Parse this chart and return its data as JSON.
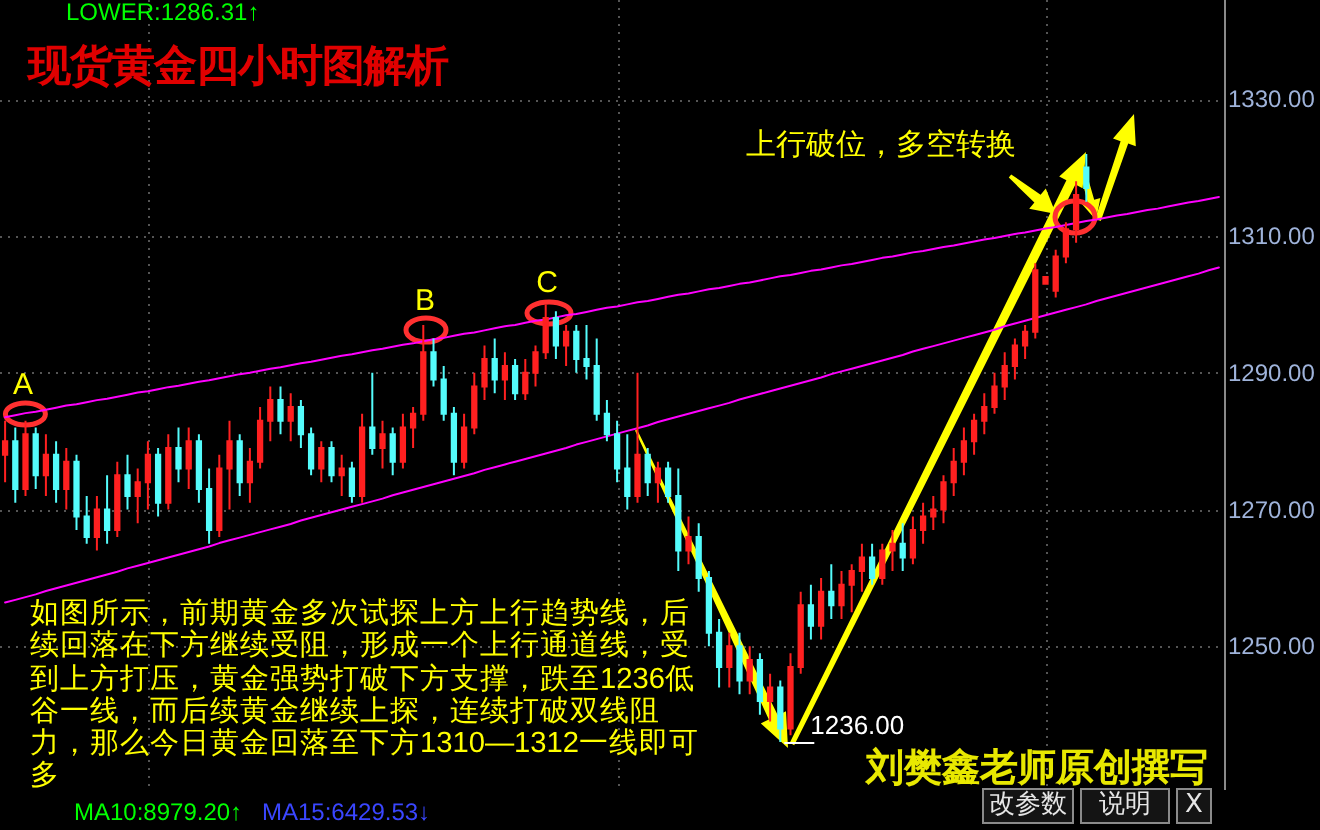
{
  "chart_data": {
    "type": "candlestick",
    "title": "现货黄金四小时图解析",
    "categories": [
      null,
      null,
      null,
      null,
      null,
      null,
      null,
      null,
      null,
      null,
      null,
      null,
      null,
      null,
      null,
      null,
      null,
      null,
      null,
      null,
      null,
      null,
      null,
      null,
      null,
      null,
      null,
      null,
      null,
      null,
      null,
      null,
      null,
      null,
      null,
      null,
      null,
      null,
      null,
      null,
      null,
      null,
      null,
      null,
      null,
      null,
      null,
      null,
      null,
      null,
      null,
      null,
      null,
      null,
      null,
      null,
      null,
      null,
      null,
      null,
      null,
      null,
      null,
      null,
      null,
      null,
      null,
      null,
      null,
      null,
      null,
      null,
      null,
      null,
      null,
      null,
      null,
      null,
      null,
      null,
      null,
      null,
      null,
      null,
      null,
      null,
      null,
      null,
      null,
      null,
      null,
      null,
      null,
      null,
      null,
      null,
      null,
      null,
      null,
      null,
      null,
      null,
      null,
      null,
      null,
      null,
      null,
      null,
      null,
      null,
      null,
      null,
      null,
      null,
      null,
      null,
      null,
      null,
      null,
      null
    ],
    "ohlc": [
      [
        1278,
        1283,
        1274,
        1280
      ],
      [
        1280,
        1282,
        1271,
        1273
      ],
      [
        1273,
        1283,
        1272,
        1281
      ],
      [
        1281,
        1282,
        1273,
        1275
      ],
      [
        1275,
        1281,
        1272,
        1278
      ],
      [
        1278,
        1280,
        1271,
        1273
      ],
      [
        1273,
        1279,
        1270,
        1277
      ],
      [
        1277,
        1278,
        1267,
        1269
      ],
      [
        1269,
        1272,
        1265,
        1266
      ],
      [
        1266,
        1272,
        1264,
        1270
      ],
      [
        1270,
        1275,
        1265,
        1267
      ],
      [
        1267,
        1277,
        1266,
        1275
      ],
      [
        1275,
        1278,
        1270,
        1272
      ],
      [
        1272,
        1276,
        1268,
        1274
      ],
      [
        1274,
        1280,
        1270,
        1278
      ],
      [
        1278,
        1279,
        1269,
        1271
      ],
      [
        1271,
        1281,
        1270,
        1279
      ],
      [
        1279,
        1282,
        1274,
        1276
      ],
      [
        1276,
        1282,
        1273,
        1280
      ],
      [
        1280,
        1281,
        1271,
        1273
      ],
      [
        1273,
        1276,
        1265,
        1267
      ],
      [
        1267,
        1278,
        1266,
        1276
      ],
      [
        1276,
        1283,
        1270,
        1280
      ],
      [
        1280,
        1281,
        1272,
        1274
      ],
      [
        1274,
        1279,
        1271,
        1277
      ],
      [
        1277,
        1285,
        1276,
        1283
      ],
      [
        1283,
        1288,
        1280,
        1286
      ],
      [
        1286,
        1288,
        1281,
        1283
      ],
      [
        1283,
        1287,
        1280,
        1285
      ],
      [
        1285,
        1286,
        1279,
        1281
      ],
      [
        1281,
        1282,
        1275,
        1276
      ],
      [
        1276,
        1280,
        1274,
        1279
      ],
      [
        1279,
        1280,
        1274,
        1275
      ],
      [
        1275,
        1278,
        1272,
        1276
      ],
      [
        1276,
        1277,
        1271,
        1272
      ],
      [
        1272,
        1284,
        1271,
        1282
      ],
      [
        1282,
        1290,
        1278,
        1279
      ],
      [
        1279,
        1283,
        1276,
        1281
      ],
      [
        1281,
        1282,
        1275,
        1277
      ],
      [
        1277,
        1284,
        1276,
        1282
      ],
      [
        1282,
        1285,
        1279,
        1284
      ],
      [
        1284,
        1297,
        1283,
        1293
      ],
      [
        1293,
        1295,
        1288,
        1289
      ],
      [
        1289,
        1291,
        1283,
        1284
      ],
      [
        1284,
        1285,
        1275,
        1277
      ],
      [
        1277,
        1284,
        1276,
        1282
      ],
      [
        1282,
        1290,
        1281,
        1288
      ],
      [
        1288,
        1294,
        1286,
        1292
      ],
      [
        1292,
        1295,
        1287,
        1289
      ],
      [
        1289,
        1293,
        1286,
        1291
      ],
      [
        1291,
        1292,
        1286,
        1287
      ],
      [
        1287,
        1292,
        1286,
        1290
      ],
      [
        1290,
        1294,
        1288,
        1293
      ],
      [
        1293,
        1300,
        1292,
        1298
      ],
      [
        1298,
        1299,
        1292,
        1294
      ],
      [
        1294,
        1297,
        1291,
        1296
      ],
      [
        1296,
        1297,
        1290,
        1292
      ],
      [
        1292,
        1297,
        1289,
        1291
      ],
      [
        1291,
        1295,
        1283,
        1284
      ],
      [
        1284,
        1286,
        1280,
        1281
      ],
      [
        1281,
        1283,
        1274,
        1276
      ],
      [
        1276,
        1281,
        1270,
        1272
      ],
      [
        1272,
        1290,
        1271,
        1278
      ],
      [
        1278,
        1279,
        1272,
        1274
      ],
      [
        1274,
        1277,
        1271,
        1276
      ],
      [
        1276,
        1277,
        1271,
        1272
      ],
      [
        1272,
        1276,
        1261,
        1264
      ],
      [
        1264,
        1269,
        1262,
        1266
      ],
      [
        1266,
        1268,
        1258,
        1260
      ],
      [
        1260,
        1261,
        1250,
        1252
      ],
      [
        1252,
        1254,
        1244,
        1247
      ],
      [
        1247,
        1252,
        1244,
        1250
      ],
      [
        1250,
        1252,
        1243,
        1245
      ],
      [
        1245,
        1250,
        1243,
        1248
      ],
      [
        1248,
        1249,
        1240,
        1242
      ],
      [
        1242,
        1246,
        1239,
        1244
      ],
      [
        1244,
        1245,
        1236,
        1238
      ],
      [
        1238,
        1249,
        1237,
        1247
      ],
      [
        1247,
        1258,
        1246,
        1256
      ],
      [
        1256,
        1259,
        1251,
        1253
      ],
      [
        1253,
        1260,
        1251,
        1258
      ],
      [
        1258,
        1262,
        1254,
        1256
      ],
      [
        1256,
        1261,
        1254,
        1259
      ],
      [
        1259,
        1262,
        1255,
        1261
      ],
      [
        1261,
        1265,
        1258,
        1263
      ],
      [
        1263,
        1265,
        1259,
        1260
      ],
      [
        1260,
        1265,
        1259,
        1264
      ],
      [
        1264,
        1267,
        1261,
        1265
      ],
      [
        1265,
        1268,
        1261,
        1263
      ],
      [
        1263,
        1269,
        1262,
        1267
      ],
      [
        1267,
        1271,
        1265,
        1269
      ],
      [
        1269,
        1272,
        1267,
        1270
      ],
      [
        1270,
        1275,
        1268,
        1274
      ],
      [
        1274,
        1279,
        1272,
        1277
      ],
      [
        1277,
        1282,
        1275,
        1280
      ],
      [
        1280,
        1284,
        1278,
        1283
      ],
      [
        1283,
        1287,
        1281,
        1285
      ],
      [
        1285,
        1290,
        1284,
        1288
      ],
      [
        1288,
        1293,
        1286,
        1291
      ],
      [
        1291,
        1295,
        1289,
        1294
      ],
      [
        1294,
        1297,
        1292,
        1296
      ],
      [
        1296,
        1306,
        1295,
        1305
      ],
      [
        1303,
        1304,
        1303,
        1304
      ],
      [
        1302,
        1308,
        1301,
        1307
      ],
      [
        1307,
        1312,
        1306,
        1311
      ],
      [
        1311,
        1318,
        1309,
        1316
      ],
      [
        1320,
        1322,
        1315,
        1317
      ],
      null,
      null,
      null,
      null,
      null,
      null,
      null,
      null,
      null,
      null,
      null,
      null,
      null
    ],
    "colors": [
      "#ff2020",
      "#54fcfc",
      "#ff2020",
      "#54fcfc",
      "#ff2020",
      "#54fcfc",
      "#ff2020",
      "#54fcfc",
      "#54fcfc",
      "#ff2020",
      "#54fcfc",
      "#ff2020",
      "#54fcfc",
      "#ff2020",
      "#ff2020",
      "#54fcfc",
      "#ff2020",
      "#54fcfc",
      "#ff2020",
      "#54fcfc",
      "#54fcfc",
      "#ff2020",
      "#ff2020",
      "#54fcfc",
      "#ff2020",
      "#ff2020",
      "#ff2020",
      "#54fcfc",
      "#ff2020",
      "#54fcfc",
      "#54fcfc",
      "#ff2020",
      "#54fcfc",
      "#ff2020",
      "#54fcfc",
      "#ff2020",
      "#54fcfc",
      "#ff2020",
      "#54fcfc",
      "#ff2020",
      "#ff2020",
      "#ff2020",
      "#54fcfc",
      "#54fcfc",
      "#54fcfc",
      "#ff2020",
      "#ff2020",
      "#ff2020",
      "#54fcfc",
      "#ff2020",
      "#54fcfc",
      "#ff2020",
      "#ff2020",
      "#ff2020",
      "#54fcfc",
      "#ff2020",
      "#54fcfc",
      "#54fcfc",
      "#54fcfc",
      "#54fcfc",
      "#54fcfc",
      "#54fcfc",
      "#ff2020",
      "#54fcfc",
      "#ff2020",
      "#54fcfc",
      "#54fcfc",
      "#ff2020",
      "#54fcfc",
      "#54fcfc",
      "#54fcfc",
      "#ff2020",
      "#54fcfc",
      "#ff2020",
      "#54fcfc",
      "#ff2020",
      "#54fcfc",
      "#ff2020",
      "#ff2020",
      "#54fcfc",
      "#ff2020",
      "#54fcfc",
      "#ff2020",
      "#ff2020",
      "#ff2020",
      "#54fcfc",
      "#ff2020",
      "#ff2020",
      "#54fcfc",
      "#ff2020",
      "#ff2020",
      "#ff2020",
      "#ff2020",
      "#ff2020",
      "#ff2020",
      "#ff2020",
      "#ff2020",
      "#ff2020",
      "#ff2020",
      "#ff2020",
      "#ff2020",
      "#ff2020",
      "#ff2020",
      "#ff2020",
      "#ff2020",
      "#ff2020",
      "#54fcfc",
      null,
      null,
      null,
      null,
      null,
      null,
      null,
      null,
      null,
      null,
      null,
      null,
      null
    ],
    "series": [
      {
        "type": "line",
        "color": "#ff00ff",
        "values": [
          1283.5,
          1283.8,
          1284.1,
          1284.3,
          1284.6,
          1284.9,
          1285.2,
          1285.4,
          1285.7,
          1286.0,
          1286.2,
          1286.5,
          1286.8,
          1287.1,
          1287.3,
          1287.6,
          1287.9,
          1288.1,
          1288.4,
          1288.7,
          1288.9,
          1289.2,
          1289.5,
          1289.8,
          1290.0,
          1290.3,
          1290.6,
          1290.8,
          1291.1,
          1291.4,
          1291.6,
          1291.9,
          1292.2,
          1292.5,
          1292.7,
          1293.0,
          1293.3,
          1293.5,
          1293.8,
          1294.1,
          1294.3,
          1294.6,
          1294.9,
          1295.1,
          1295.4,
          1295.7,
          1295.9,
          1296.2,
          1296.5,
          1296.8,
          1297.0,
          1297.3,
          1297.6,
          1297.8,
          1298.1,
          1298.4,
          1298.6,
          1298.9,
          1299.2,
          1299.5,
          1299.7,
          1300.0,
          1300.3,
          1300.5,
          1300.8,
          1301.1,
          1301.4,
          1301.6,
          1301.9,
          1302.2,
          1302.4,
          1302.7,
          1303.0,
          1303.2,
          1303.5,
          1303.8,
          1304.1,
          1304.3,
          1304.6,
          1304.9,
          1305.1,
          1305.4,
          1305.7,
          1305.9,
          1306.2,
          1306.5,
          1306.8,
          1307.0,
          1307.3,
          1307.6,
          1307.8,
          1308.1,
          1308.4,
          1308.6,
          1308.9,
          1309.2,
          1309.5,
          1309.7,
          1310.0,
          1310.3,
          1310.5,
          1310.8,
          1311.1,
          1311.3,
          1311.6,
          1311.9,
          1312.2,
          1312.4,
          1312.7,
          1313.0,
          1313.2,
          1313.5,
          1313.8,
          1314.0,
          1314.3,
          1314.6,
          1314.9,
          1315.1,
          1315.4,
          1315.7
        ]
      },
      {
        "type": "line",
        "color": "#ff00ff",
        "values": [
          1256.4,
          1256.8,
          1257.2,
          1257.6,
          1258.1,
          1258.5,
          1258.9,
          1259.3,
          1259.7,
          1260.1,
          1260.5,
          1260.9,
          1261.4,
          1261.8,
          1262.2,
          1262.6,
          1263.0,
          1263.4,
          1263.8,
          1264.2,
          1264.6,
          1265.1,
          1265.5,
          1265.9,
          1266.3,
          1266.7,
          1267.1,
          1267.5,
          1267.9,
          1268.4,
          1268.8,
          1269.2,
          1269.6,
          1270.0,
          1270.4,
          1270.8,
          1271.2,
          1271.6,
          1272.1,
          1272.5,
          1272.9,
          1273.3,
          1273.7,
          1274.1,
          1274.5,
          1274.9,
          1275.3,
          1275.8,
          1276.2,
          1276.6,
          1277.0,
          1277.4,
          1277.8,
          1278.2,
          1278.6,
          1279.0,
          1279.5,
          1279.9,
          1280.3,
          1280.7,
          1281.1,
          1281.5,
          1281.9,
          1282.3,
          1282.8,
          1283.2,
          1283.6,
          1284.0,
          1284.4,
          1284.8,
          1285.2,
          1285.6,
          1286.1,
          1286.5,
          1286.9,
          1287.3,
          1287.7,
          1288.1,
          1288.5,
          1288.9,
          1289.3,
          1289.8,
          1290.2,
          1290.6,
          1291.0,
          1291.4,
          1291.8,
          1292.2,
          1292.6,
          1293.1,
          1293.5,
          1293.9,
          1294.3,
          1294.7,
          1295.1,
          1295.5,
          1295.9,
          1296.3,
          1296.8,
          1297.2,
          1297.6,
          1298.0,
          1298.4,
          1298.8,
          1299.2,
          1299.6,
          1300.0,
          1300.5,
          1300.9,
          1301.3,
          1301.7,
          1302.1,
          1302.5,
          1302.9,
          1303.3,
          1303.7,
          1304.1,
          1304.5,
          1305.0,
          1305.4
        ]
      }
    ],
    "ylim": [
      1229,
      1344.5
    ],
    "yticks": [
      {
        "value": 1250,
        "label": "1250.00"
      },
      {
        "value": 1270,
        "label": "1270.00"
      },
      {
        "value": 1290,
        "label": "1290.00"
      },
      {
        "value": 1310,
        "label": "1310.00"
      },
      {
        "value": 1330,
        "label": "1330.00"
      }
    ],
    "grid": true,
    "tick_labels": "y",
    "annotations": [
      "LOWER:1286.31↑",
      "上行破位，多空转换",
      "A",
      "B",
      "C",
      "1236.00",
      "如图所示，前期黄金多次试探上方上行趋势线，后续回落在下方继续受阻，形成一个上行通道线，受到上方打压，黄金强势打破下方支撑，跌至1236低谷一线，而后续黄金继续上探，连续打破双线阻力，那么今日黄金回落至下方1310—1312一线即可多",
      "刘樊鑫老师原创撰写",
      "MA10:8979.20↑",
      "MA15:6429.53↓",
      "改参数",
      "说明",
      "X"
    ]
  }
}
